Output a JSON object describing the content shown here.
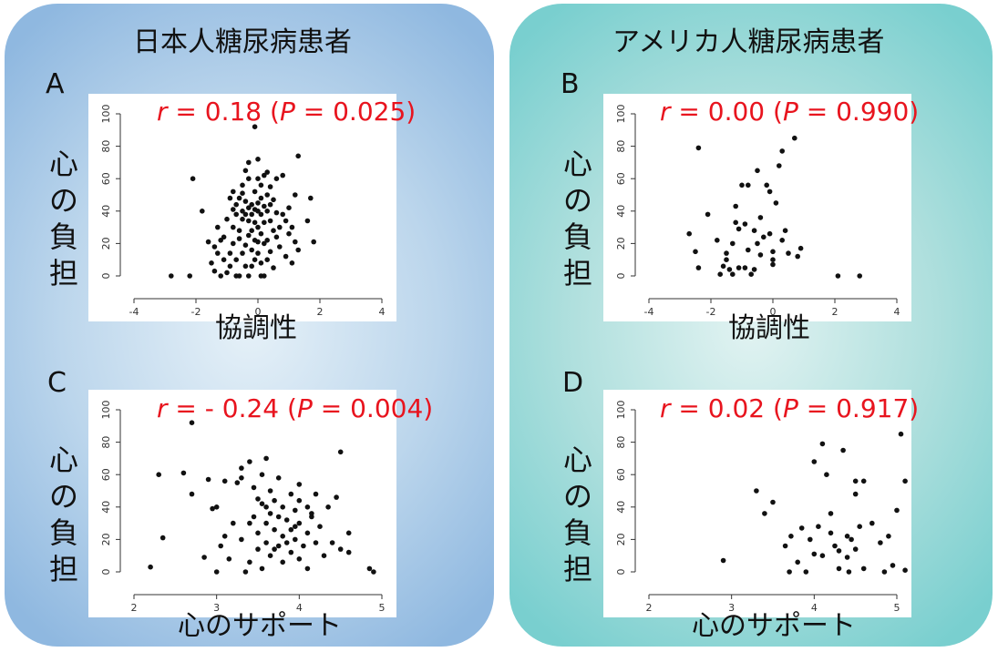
{
  "panels": {
    "left": {
      "title": "日本人糖尿病患者"
    },
    "right": {
      "title": "アメリカ人糖尿病患者"
    }
  },
  "ylabel_chars": [
    "心",
    "の",
    "負",
    "担"
  ],
  "chart_data": [
    {
      "id": "A",
      "type": "scatter",
      "letter": "A",
      "stat": {
        "r_sym": "r",
        "r_text": " = 0.18 (",
        "p_sym": "P",
        "p_text": " = 0.025)"
      },
      "xlabel": "協調性",
      "ylabel": "心の負担",
      "xlim": [
        -4,
        4
      ],
      "ylim": [
        0,
        100
      ],
      "xticks": [
        "-4",
        "-2",
        "0",
        "2",
        "4"
      ],
      "yticks": [
        "0",
        "20",
        "40",
        "60",
        "80",
        "100"
      ],
      "points": [
        [
          -2.8,
          0
        ],
        [
          -2.2,
          0
        ],
        [
          -2.1,
          60
        ],
        [
          -1.8,
          40
        ],
        [
          -1.6,
          21
        ],
        [
          -1.5,
          8
        ],
        [
          -1.4,
          18
        ],
        [
          -1.4,
          3
        ],
        [
          -1.3,
          14
        ],
        [
          -1.3,
          30
        ],
        [
          -1.2,
          22
        ],
        [
          -1.2,
          0
        ],
        [
          -1.1,
          10
        ],
        [
          -1.1,
          24
        ],
        [
          -1.0,
          35
        ],
        [
          -1.0,
          2
        ],
        [
          -0.9,
          14
        ],
        [
          -0.9,
          48
        ],
        [
          -0.9,
          6
        ],
        [
          -0.8,
          41
        ],
        [
          -0.8,
          52
        ],
        [
          -0.8,
          30
        ],
        [
          -0.8,
          20
        ],
        [
          -0.7,
          0
        ],
        [
          -0.7,
          38
        ],
        [
          -0.7,
          44
        ],
        [
          -0.7,
          10
        ],
        [
          -0.6,
          48
        ],
        [
          -0.6,
          28
        ],
        [
          -0.6,
          23
        ],
        [
          -0.6,
          0
        ],
        [
          -0.5,
          56
        ],
        [
          -0.5,
          51
        ],
        [
          -0.5,
          40
        ],
        [
          -0.5,
          35
        ],
        [
          -0.5,
          14
        ],
        [
          -0.4,
          65
        ],
        [
          -0.4,
          46
        ],
        [
          -0.4,
          38
        ],
        [
          -0.4,
          19
        ],
        [
          -0.4,
          6
        ],
        [
          -0.3,
          70
        ],
        [
          -0.3,
          60
        ],
        [
          -0.3,
          42
        ],
        [
          -0.3,
          34
        ],
        [
          -0.3,
          25
        ],
        [
          -0.3,
          0
        ],
        [
          -0.2,
          44
        ],
        [
          -0.2,
          38
        ],
        [
          -0.2,
          28
        ],
        [
          -0.2,
          16
        ],
        [
          -0.2,
          6
        ],
        [
          -0.1,
          92
        ],
        [
          -0.1,
          52
        ],
        [
          -0.1,
          41
        ],
        [
          -0.1,
          33
        ],
        [
          -0.1,
          22
        ],
        [
          -0.1,
          10
        ],
        [
          0.0,
          72
        ],
        [
          0.0,
          60
        ],
        [
          0.0,
          45
        ],
        [
          0.0,
          40
        ],
        [
          0.0,
          30
        ],
        [
          0.0,
          21
        ],
        [
          0.0,
          14
        ],
        [
          0.1,
          56
        ],
        [
          0.1,
          48
        ],
        [
          0.1,
          38
        ],
        [
          0.1,
          26
        ],
        [
          0.1,
          8
        ],
        [
          0.1,
          0
        ],
        [
          0.2,
          62
        ],
        [
          0.2,
          43
        ],
        [
          0.2,
          33
        ],
        [
          0.2,
          20
        ],
        [
          0.2,
          0
        ],
        [
          0.3,
          64
        ],
        [
          0.3,
          50
        ],
        [
          0.3,
          40
        ],
        [
          0.3,
          22
        ],
        [
          0.3,
          10
        ],
        [
          0.4,
          55
        ],
        [
          0.4,
          44
        ],
        [
          0.4,
          34
        ],
        [
          0.4,
          15
        ],
        [
          0.5,
          47
        ],
        [
          0.5,
          28
        ],
        [
          0.5,
          5
        ],
        [
          0.6,
          60
        ],
        [
          0.6,
          39
        ],
        [
          0.6,
          24
        ],
        [
          0.7,
          30
        ],
        [
          0.7,
          18
        ],
        [
          0.8,
          62
        ],
        [
          0.8,
          38
        ],
        [
          0.9,
          34
        ],
        [
          0.9,
          12
        ],
        [
          1.0,
          42
        ],
        [
          1.0,
          26
        ],
        [
          1.1,
          30
        ],
        [
          1.1,
          8
        ],
        [
          1.2,
          50
        ],
        [
          1.2,
          21
        ],
        [
          1.3,
          74
        ],
        [
          1.3,
          16
        ],
        [
          1.6,
          34
        ],
        [
          1.7,
          48
        ],
        [
          1.8,
          21
        ]
      ]
    },
    {
      "id": "B",
      "type": "scatter",
      "letter": "B",
      "stat": {
        "r_sym": "r",
        "r_text": " = 0.00 (",
        "p_sym": "P",
        "p_text": " = 0.990)"
      },
      "xlabel": "協調性",
      "ylabel": "心の負担",
      "xlim": [
        -4,
        4
      ],
      "ylim": [
        0,
        100
      ],
      "xticks": [
        "-4",
        "-2",
        "0",
        "2",
        "4"
      ],
      "yticks": [
        "0",
        "20",
        "40",
        "60",
        "80",
        "100"
      ],
      "points": [
        [
          -2.4,
          79
        ],
        [
          -2.7,
          26
        ],
        [
          -2.5,
          15
        ],
        [
          -2.4,
          5
        ],
        [
          -2.1,
          38
        ],
        [
          -1.8,
          22
        ],
        [
          -1.7,
          1
        ],
        [
          -1.6,
          6
        ],
        [
          -1.5,
          14
        ],
        [
          -1.5,
          10
        ],
        [
          -1.4,
          4
        ],
        [
          -1.3,
          20
        ],
        [
          -1.3,
          1
        ],
        [
          -1.2,
          33
        ],
        [
          -1.2,
          43
        ],
        [
          -1.1,
          29
        ],
        [
          -1.1,
          5
        ],
        [
          -1.0,
          56
        ],
        [
          -0.9,
          5
        ],
        [
          -0.9,
          32
        ],
        [
          -0.8,
          56
        ],
        [
          -0.8,
          16
        ],
        [
          -0.7,
          1
        ],
        [
          -0.6,
          4
        ],
        [
          -0.6,
          28
        ],
        [
          -0.5,
          65
        ],
        [
          -0.5,
          20
        ],
        [
          -0.4,
          36
        ],
        [
          -0.4,
          13
        ],
        [
          -0.3,
          24
        ],
        [
          -0.2,
          56
        ],
        [
          -0.1,
          52
        ],
        [
          -0.1,
          26
        ],
        [
          0.0,
          15
        ],
        [
          0.0,
          10
        ],
        [
          0.0,
          7
        ],
        [
          0.1,
          45
        ],
        [
          0.2,
          68
        ],
        [
          0.3,
          77
        ],
        [
          0.3,
          22
        ],
        [
          0.4,
          28
        ],
        [
          0.5,
          14
        ],
        [
          0.7,
          85
        ],
        [
          0.8,
          12
        ],
        [
          0.9,
          17
        ],
        [
          2.1,
          0
        ],
        [
          2.8,
          0
        ]
      ]
    },
    {
      "id": "C",
      "type": "scatter",
      "letter": "C",
      "stat": {
        "r_sym": "r",
        "r_text": " = - 0.24 (",
        "p_sym": "P",
        "p_text": " = 0.004)"
      },
      "xlabel": "心のサポート",
      "ylabel": "心の負担",
      "xlim": [
        2,
        5
      ],
      "ylim": [
        0,
        100
      ],
      "xticks": [
        "2",
        "3",
        "4",
        "5"
      ],
      "yticks": [
        "0",
        "20",
        "40",
        "60",
        "80",
        "100"
      ],
      "points": [
        [
          2.2,
          3
        ],
        [
          2.3,
          60
        ],
        [
          2.35,
          21
        ],
        [
          2.6,
          61
        ],
        [
          2.7,
          92
        ],
        [
          2.7,
          48
        ],
        [
          2.85,
          9
        ],
        [
          2.9,
          57
        ],
        [
          2.95,
          39
        ],
        [
          3.0,
          0
        ],
        [
          3.0,
          40
        ],
        [
          3.05,
          16
        ],
        [
          3.1,
          56
        ],
        [
          3.1,
          22
        ],
        [
          3.15,
          8
        ],
        [
          3.2,
          30
        ],
        [
          3.25,
          55
        ],
        [
          3.3,
          64
        ],
        [
          3.3,
          20
        ],
        [
          3.35,
          0
        ],
        [
          3.4,
          6
        ],
        [
          3.4,
          68
        ],
        [
          3.45,
          52
        ],
        [
          3.45,
          34
        ],
        [
          3.5,
          45
        ],
        [
          3.5,
          24
        ],
        [
          3.5,
          14
        ],
        [
          3.55,
          60
        ],
        [
          3.55,
          2
        ],
        [
          3.6,
          70
        ],
        [
          3.6,
          40
        ],
        [
          3.6,
          30
        ],
        [
          3.6,
          18
        ],
        [
          3.65,
          50
        ],
        [
          3.65,
          10
        ],
        [
          3.7,
          44
        ],
        [
          3.7,
          14
        ],
        [
          3.7,
          26
        ],
        [
          3.75,
          58
        ],
        [
          3.75,
          34
        ],
        [
          3.8,
          40
        ],
        [
          3.8,
          22
        ],
        [
          3.8,
          6
        ],
        [
          3.85,
          32
        ],
        [
          3.85,
          18
        ],
        [
          3.9,
          48
        ],
        [
          3.9,
          26
        ],
        [
          3.9,
          12
        ],
        [
          3.95,
          38
        ],
        [
          3.95,
          20
        ],
        [
          4.0,
          54
        ],
        [
          4.0,
          44
        ],
        [
          4.0,
          30
        ],
        [
          4.0,
          8
        ],
        [
          4.05,
          16
        ],
        [
          4.1,
          40
        ],
        [
          4.1,
          24
        ],
        [
          4.1,
          2
        ],
        [
          4.15,
          34
        ],
        [
          4.2,
          48
        ],
        [
          4.2,
          18
        ],
        [
          4.25,
          28
        ],
        [
          4.3,
          10
        ],
        [
          4.35,
          40
        ],
        [
          4.4,
          18
        ],
        [
          4.45,
          46
        ],
        [
          4.5,
          74
        ],
        [
          4.5,
          14
        ],
        [
          4.6,
          24
        ],
        [
          4.6,
          12
        ],
        [
          4.85,
          2
        ],
        [
          4.9,
          0
        ],
        [
          3.3,
          58
        ],
        [
          3.55,
          42
        ],
        [
          3.75,
          16
        ],
        [
          3.95,
          28
        ],
        [
          4.15,
          36
        ],
        [
          3.4,
          30
        ],
        [
          3.65,
          36
        ]
      ]
    },
    {
      "id": "D",
      "type": "scatter",
      "letter": "D",
      "stat": {
        "r_sym": "r",
        "r_text": " = 0.02 (",
        "p_sym": "P",
        "p_text": " = 0.917)"
      },
      "xlabel": "心のサポート",
      "ylabel": "心の負担",
      "xlim": [
        2,
        5
      ],
      "ylim": [
        0,
        100
      ],
      "xticks": [
        "2",
        "3",
        "4",
        "5"
      ],
      "yticks": [
        "0",
        "20",
        "40",
        "60",
        "80",
        "100"
      ],
      "points": [
        [
          2.9,
          7
        ],
        [
          3.3,
          50
        ],
        [
          3.4,
          36
        ],
        [
          3.5,
          43
        ],
        [
          3.65,
          16
        ],
        [
          3.7,
          0
        ],
        [
          3.72,
          22
        ],
        [
          3.8,
          6
        ],
        [
          3.85,
          27
        ],
        [
          3.9,
          0
        ],
        [
          4.0,
          68
        ],
        [
          4.0,
          11
        ],
        [
          4.05,
          28
        ],
        [
          4.1,
          79
        ],
        [
          4.1,
          10
        ],
        [
          4.15,
          60
        ],
        [
          4.2,
          36
        ],
        [
          4.2,
          24
        ],
        [
          4.25,
          16
        ],
        [
          4.3,
          2
        ],
        [
          4.3,
          13
        ],
        [
          4.35,
          75
        ],
        [
          4.4,
          22
        ],
        [
          4.4,
          9
        ],
        [
          4.45,
          20
        ],
        [
          4.5,
          56
        ],
        [
          4.5,
          48
        ],
        [
          4.5,
          14
        ],
        [
          4.55,
          28
        ],
        [
          4.6,
          56
        ],
        [
          4.6,
          2
        ],
        [
          4.7,
          30
        ],
        [
          4.8,
          18
        ],
        [
          4.85,
          0
        ],
        [
          4.9,
          22
        ],
        [
          4.95,
          4
        ],
        [
          5.0,
          38
        ],
        [
          5.05,
          85
        ],
        [
          5.1,
          56
        ],
        [
          5.1,
          1
        ],
        [
          4.42,
          0
        ],
        [
          3.95,
          20
        ]
      ]
    }
  ]
}
